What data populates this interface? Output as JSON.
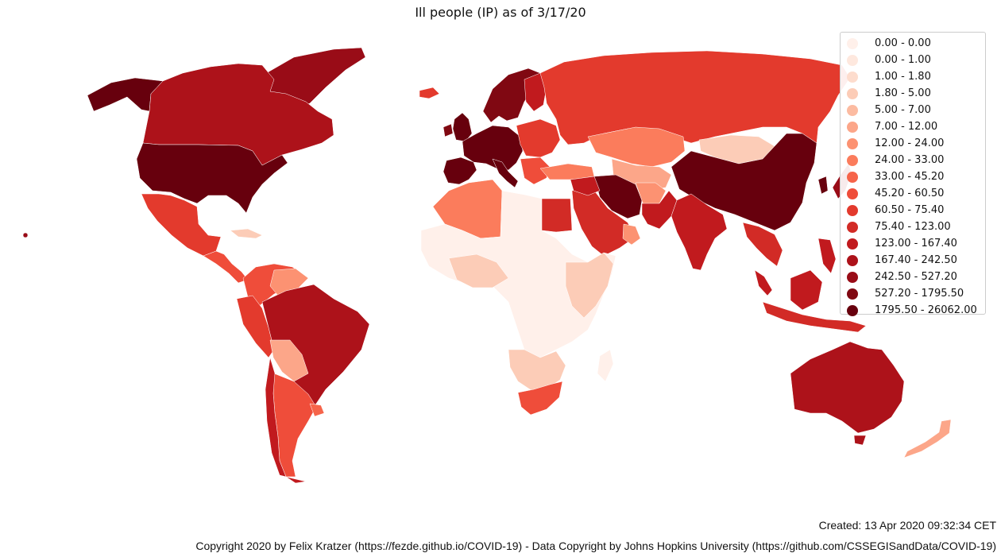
{
  "title": "Ill people (IP) as of 3/17/20",
  "legend": [
    {
      "label": "0.00 - 0.00",
      "color": "#fff0ea"
    },
    {
      "label": "0.00 - 1.00",
      "color": "#fee8de"
    },
    {
      "label": "1.00 - 1.80",
      "color": "#fddccd"
    },
    {
      "label": "1.80 - 5.00",
      "color": "#fcccb7"
    },
    {
      "label": "5.00 - 7.00",
      "color": "#fcbba1"
    },
    {
      "label": "7.00 - 12.00",
      "color": "#fca689"
    },
    {
      "label": "12.00 - 24.00",
      "color": "#fc9272"
    },
    {
      "label": "24.00 - 33.00",
      "color": "#fb7c5c"
    },
    {
      "label": "33.00 - 45.20",
      "color": "#f6644a"
    },
    {
      "label": "45.20 - 60.50",
      "color": "#ef4d3a"
    },
    {
      "label": "60.50 - 75.40",
      "color": "#e33a2d"
    },
    {
      "label": "75.40 - 123.00",
      "color": "#d22b26"
    },
    {
      "label": "123.00 - 167.40",
      "color": "#c11a1e"
    },
    {
      "label": "167.40 - 242.50",
      "color": "#ad121a"
    },
    {
      "label": "242.50 - 527.20",
      "color": "#990c17"
    },
    {
      "label": "527.20 - 1795.50",
      "color": "#800812"
    },
    {
      "label": "1795.50 - 26062.00",
      "color": "#67000d"
    }
  ],
  "created": "Created: 13 Apr 2020 09:32:34 CET",
  "copyright": "Copyright 2020 by Felix Kratzer (https://fezde.github.io/COVID-19) - Data Copyright by Johns Hopkins University (https://github.com/CSSEGISandData/COVID-19)"
}
